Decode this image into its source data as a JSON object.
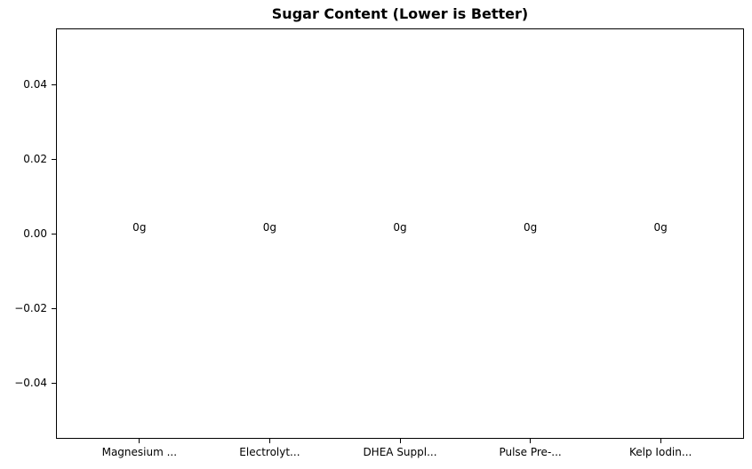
{
  "chart_data": {
    "type": "bar",
    "title": "Sugar Content (Lower is Better)",
    "categories": [
      "Magnesium ...",
      "Electrolyt...",
      "DHEA Suppl...",
      "Pulse Pre-...",
      "Kelp Iodin..."
    ],
    "values": [
      0,
      0,
      0,
      0,
      0
    ],
    "bar_labels": [
      "0g",
      "0g",
      "0g",
      "0g",
      "0g"
    ],
    "unit": "g",
    "xlabel": "",
    "ylabel": "",
    "ylim": [
      -0.055,
      0.055
    ],
    "yticks": [
      0.04,
      0.02,
      0,
      -0.02,
      -0.04
    ],
    "ytick_labels": [
      "0.04",
      "0.02",
      "0.00",
      "−0.02",
      "−0.04"
    ],
    "grid": false,
    "legend_position": "none",
    "bar_color": "#1f77b4",
    "text_color": "#000000",
    "axis_color": "#000000",
    "background_color": "#ffffff"
  }
}
